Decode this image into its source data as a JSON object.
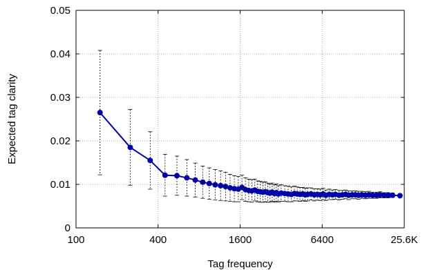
{
  "chart_data": {
    "type": "line",
    "title": "",
    "xlabel": "Tag frequency",
    "ylabel": "Expected tag clarity",
    "x_scale": "log2",
    "xlim": [
      100,
      25600
    ],
    "ylim": [
      0,
      0.05
    ],
    "x_ticks": [
      100,
      400,
      1600,
      6400,
      25600
    ],
    "x_tick_labels": [
      "100",
      "400",
      "1600",
      "6400",
      "25.6K"
    ],
    "y_ticks": [
      0,
      0.01,
      0.02,
      0.03,
      0.04,
      0.05
    ],
    "y_tick_labels": [
      "0",
      "0.01",
      "0.02",
      "0.03",
      "0.04",
      "0.05"
    ],
    "grid": true,
    "legend": "none",
    "colors": {
      "series": "#0000a8",
      "error_bars": "#000000",
      "grid": "#888888"
    },
    "series": [
      {
        "x": [
          150,
          250,
          350,
          450,
          550,
          650,
          750,
          850,
          950,
          1050,
          1150,
          1250,
          1350,
          1450,
          1550,
          1650,
          1750,
          1850,
          1950,
          2050,
          2150,
          2250,
          2350,
          2450,
          2550,
          2650,
          2750,
          2850,
          2950,
          3050,
          3200,
          3400,
          3600,
          3800,
          4000,
          4200,
          4400,
          4600,
          4800,
          5000,
          5300,
          5600,
          5900,
          6200,
          6500,
          6800,
          7200,
          7600,
          8000,
          8500,
          9000,
          9500,
          10000,
          10600,
          11200,
          11800,
          12500,
          13300,
          14100,
          15000,
          16000,
          17000,
          18200,
          19500,
          21000,
          23800
        ],
        "y": [
          0.0265,
          0.0185,
          0.0155,
          0.0121,
          0.012,
          0.0115,
          0.011,
          0.0105,
          0.0102,
          0.0099,
          0.0097,
          0.0095,
          0.0092,
          0.009,
          0.0089,
          0.0093,
          0.0088,
          0.0086,
          0.0085,
          0.0087,
          0.0084,
          0.0083,
          0.0082,
          0.0083,
          0.0081,
          0.008,
          0.0082,
          0.0079,
          0.0081,
          0.0078,
          0.008,
          0.0079,
          0.0078,
          0.0077,
          0.0079,
          0.0078,
          0.0077,
          0.0078,
          0.0076,
          0.0077,
          0.0078,
          0.0076,
          0.0077,
          0.0076,
          0.0078,
          0.0075,
          0.0077,
          0.0076,
          0.0077,
          0.0075,
          0.0076,
          0.0077,
          0.0075,
          0.0076,
          0.0076,
          0.0075,
          0.0076,
          0.0075,
          0.0076,
          0.0075,
          0.0075,
          0.0076,
          0.0075,
          0.0075,
          0.0075,
          0.0074
        ],
        "err": [
          0.0143,
          0.0087,
          0.0066,
          0.0048,
          0.0045,
          0.0042,
          0.0039,
          0.0037,
          0.0036,
          0.0035,
          0.0034,
          0.0033,
          0.0031,
          0.003,
          0.0029,
          0.0028,
          0.0027,
          0.0026,
          0.0026,
          0.0025,
          0.0024,
          0.0024,
          0.0023,
          0.0023,
          0.0022,
          0.0021,
          0.0021,
          0.002,
          0.002,
          0.0019,
          0.0019,
          0.0018,
          0.0018,
          0.0017,
          0.0017,
          0.0016,
          0.0016,
          0.0015,
          0.0015,
          0.0015,
          0.0014,
          0.0014,
          0.0013,
          0.0013,
          0.0013,
          0.0012,
          0.0012,
          0.0011,
          0.0011,
          0.0011,
          0.001,
          0.001,
          0.001,
          0.0009,
          0.0009,
          0.0009,
          0.0008,
          0.0008,
          0.0008,
          0.0007,
          0.0007,
          0.0007,
          0.0006,
          0.0006,
          0.0005,
          0.0004
        ]
      }
    ]
  }
}
